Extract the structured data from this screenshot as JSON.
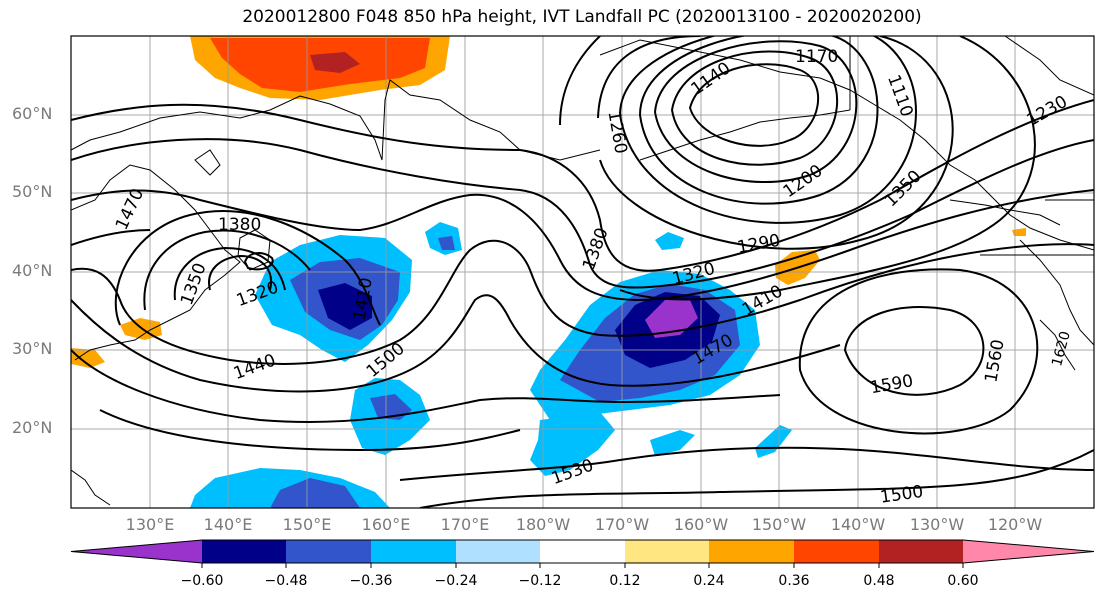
{
  "title": "2020012800 F048 850 hPa height, IVT Landfall PC (2020013100 - 2020020200)",
  "map": {
    "latitude_labels": [
      "60°N",
      "50°N",
      "40°N",
      "30°N",
      "20°N"
    ],
    "longitude_labels": [
      "130°E",
      "140°E",
      "150°E",
      "160°E",
      "170°E",
      "180°W",
      "170°W",
      "160°W",
      "150°W",
      "140°W",
      "130°W",
      "120°W"
    ],
    "contour_labels": {
      "h1170": "1170",
      "h1140": "1140",
      "h1110": "1110",
      "h1230": "1230",
      "h1260": "1260",
      "h1200": "1200",
      "h1350a": "1350",
      "h1290": "1290",
      "h1320a": "1320",
      "h1410a": "1410",
      "h1470a": "1470",
      "h1380a": "1380",
      "h1500a": "1500",
      "h1470b": "1470",
      "h1380b": "1380",
      "h1350b": "1350",
      "h1320b": "1320",
      "h1410b": "1410",
      "h1440": "1440",
      "h1590": "1590",
      "h1560": "1560",
      "h1530": "1530",
      "h1500b": "1500",
      "h1620": "1620"
    }
  },
  "colorbar": {
    "tick_labels": [
      "−0.60",
      "−0.48",
      "−0.36",
      "−0.24",
      "−0.12",
      "0.12",
      "0.24",
      "0.36",
      "0.48",
      "0.60"
    ],
    "colors": [
      "#9933cc",
      "#000088",
      "#3355cc",
      "#00bfff",
      "#b0e0ff",
      "#ffffff",
      "#ffe680",
      "#ffa500",
      "#ff4500",
      "#b22222",
      "#ff88aa"
    ]
  }
}
